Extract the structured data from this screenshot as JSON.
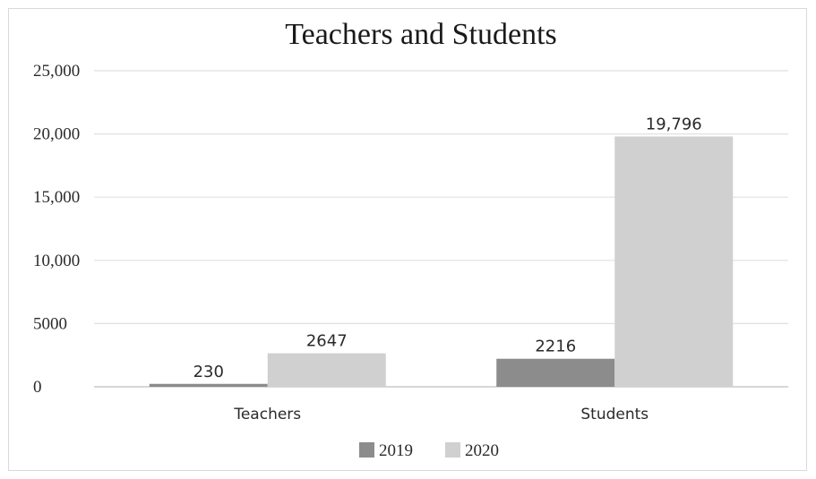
{
  "chart_data": {
    "type": "bar",
    "title": "Teachers and Students",
    "xlabel": "",
    "ylabel": "",
    "categories": [
      "Teachers",
      "Students"
    ],
    "series": [
      {
        "name": "2019",
        "values": [
          230,
          2216
        ],
        "color": "#8c8c8c",
        "labels": [
          "230",
          "2216"
        ]
      },
      {
        "name": "2020",
        "values": [
          2647,
          19796
        ],
        "color": "#d0d0d0",
        "labels": [
          "2647",
          "19,796"
        ]
      }
    ],
    "ylim": [
      0,
      25000
    ],
    "yticks": [
      0,
      5000,
      10000,
      15000,
      20000,
      25000
    ],
    "ytick_labels": [
      "0",
      "5000",
      "10,000",
      "15,000",
      "20,000",
      "25,000"
    ],
    "grid": true,
    "legend": "bottom-center"
  }
}
